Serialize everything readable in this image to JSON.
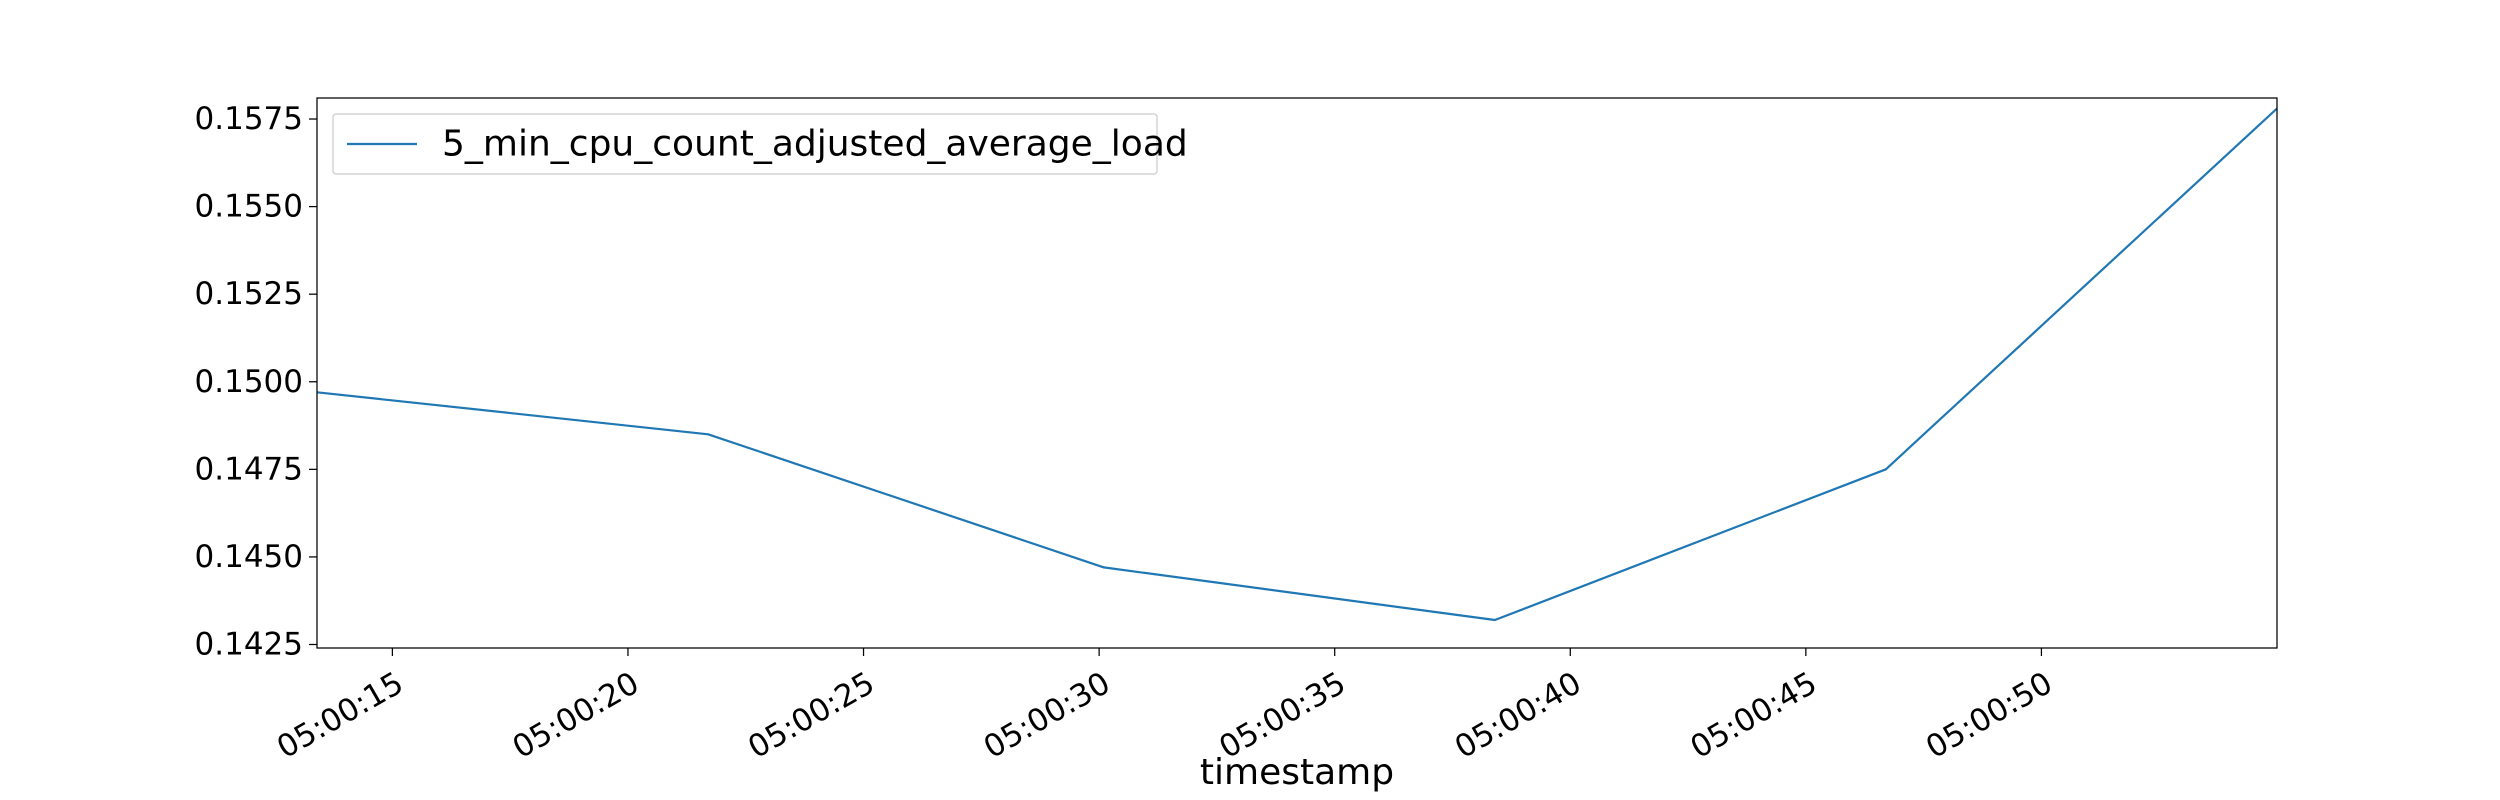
{
  "chart_data": {
    "type": "line",
    "xlabel": "timestamp",
    "ylabel": "",
    "title": "",
    "xlim": [
      "05:00:13.4",
      "05:00:55"
    ],
    "ylim": [
      0.1424,
      0.1581
    ],
    "x_ticks": [
      "05:00:15",
      "05:00:20",
      "05:00:25",
      "05:00:30",
      "05:00:35",
      "05:00:40",
      "05:00:45",
      "05:00:50"
    ],
    "y_ticks": [
      0.1425,
      0.145,
      0.1475,
      0.15,
      0.1525,
      0.155,
      0.1575
    ],
    "y_tick_labels": [
      "0.1425",
      "0.1450",
      "0.1475",
      "0.1500",
      "0.1525",
      "0.1550",
      "0.1575"
    ],
    "legend_position": "top-left",
    "grid": false,
    "series": [
      {
        "name": "5_min_cpu_count_adjusted_average_load",
        "color": "#1f77b4",
        "points": [
          {
            "x": "05:00:13.4",
            "y": 0.1497
          },
          {
            "x": "05:00:21.7",
            "y": 0.1485
          },
          {
            "x": "05:00:30.1",
            "y": 0.1447
          },
          {
            "x": "05:00:38.4",
            "y": 0.1432
          },
          {
            "x": "05:00:46.7",
            "y": 0.1475
          },
          {
            "x": "05:00:55",
            "y": 0.1578
          }
        ]
      }
    ]
  }
}
